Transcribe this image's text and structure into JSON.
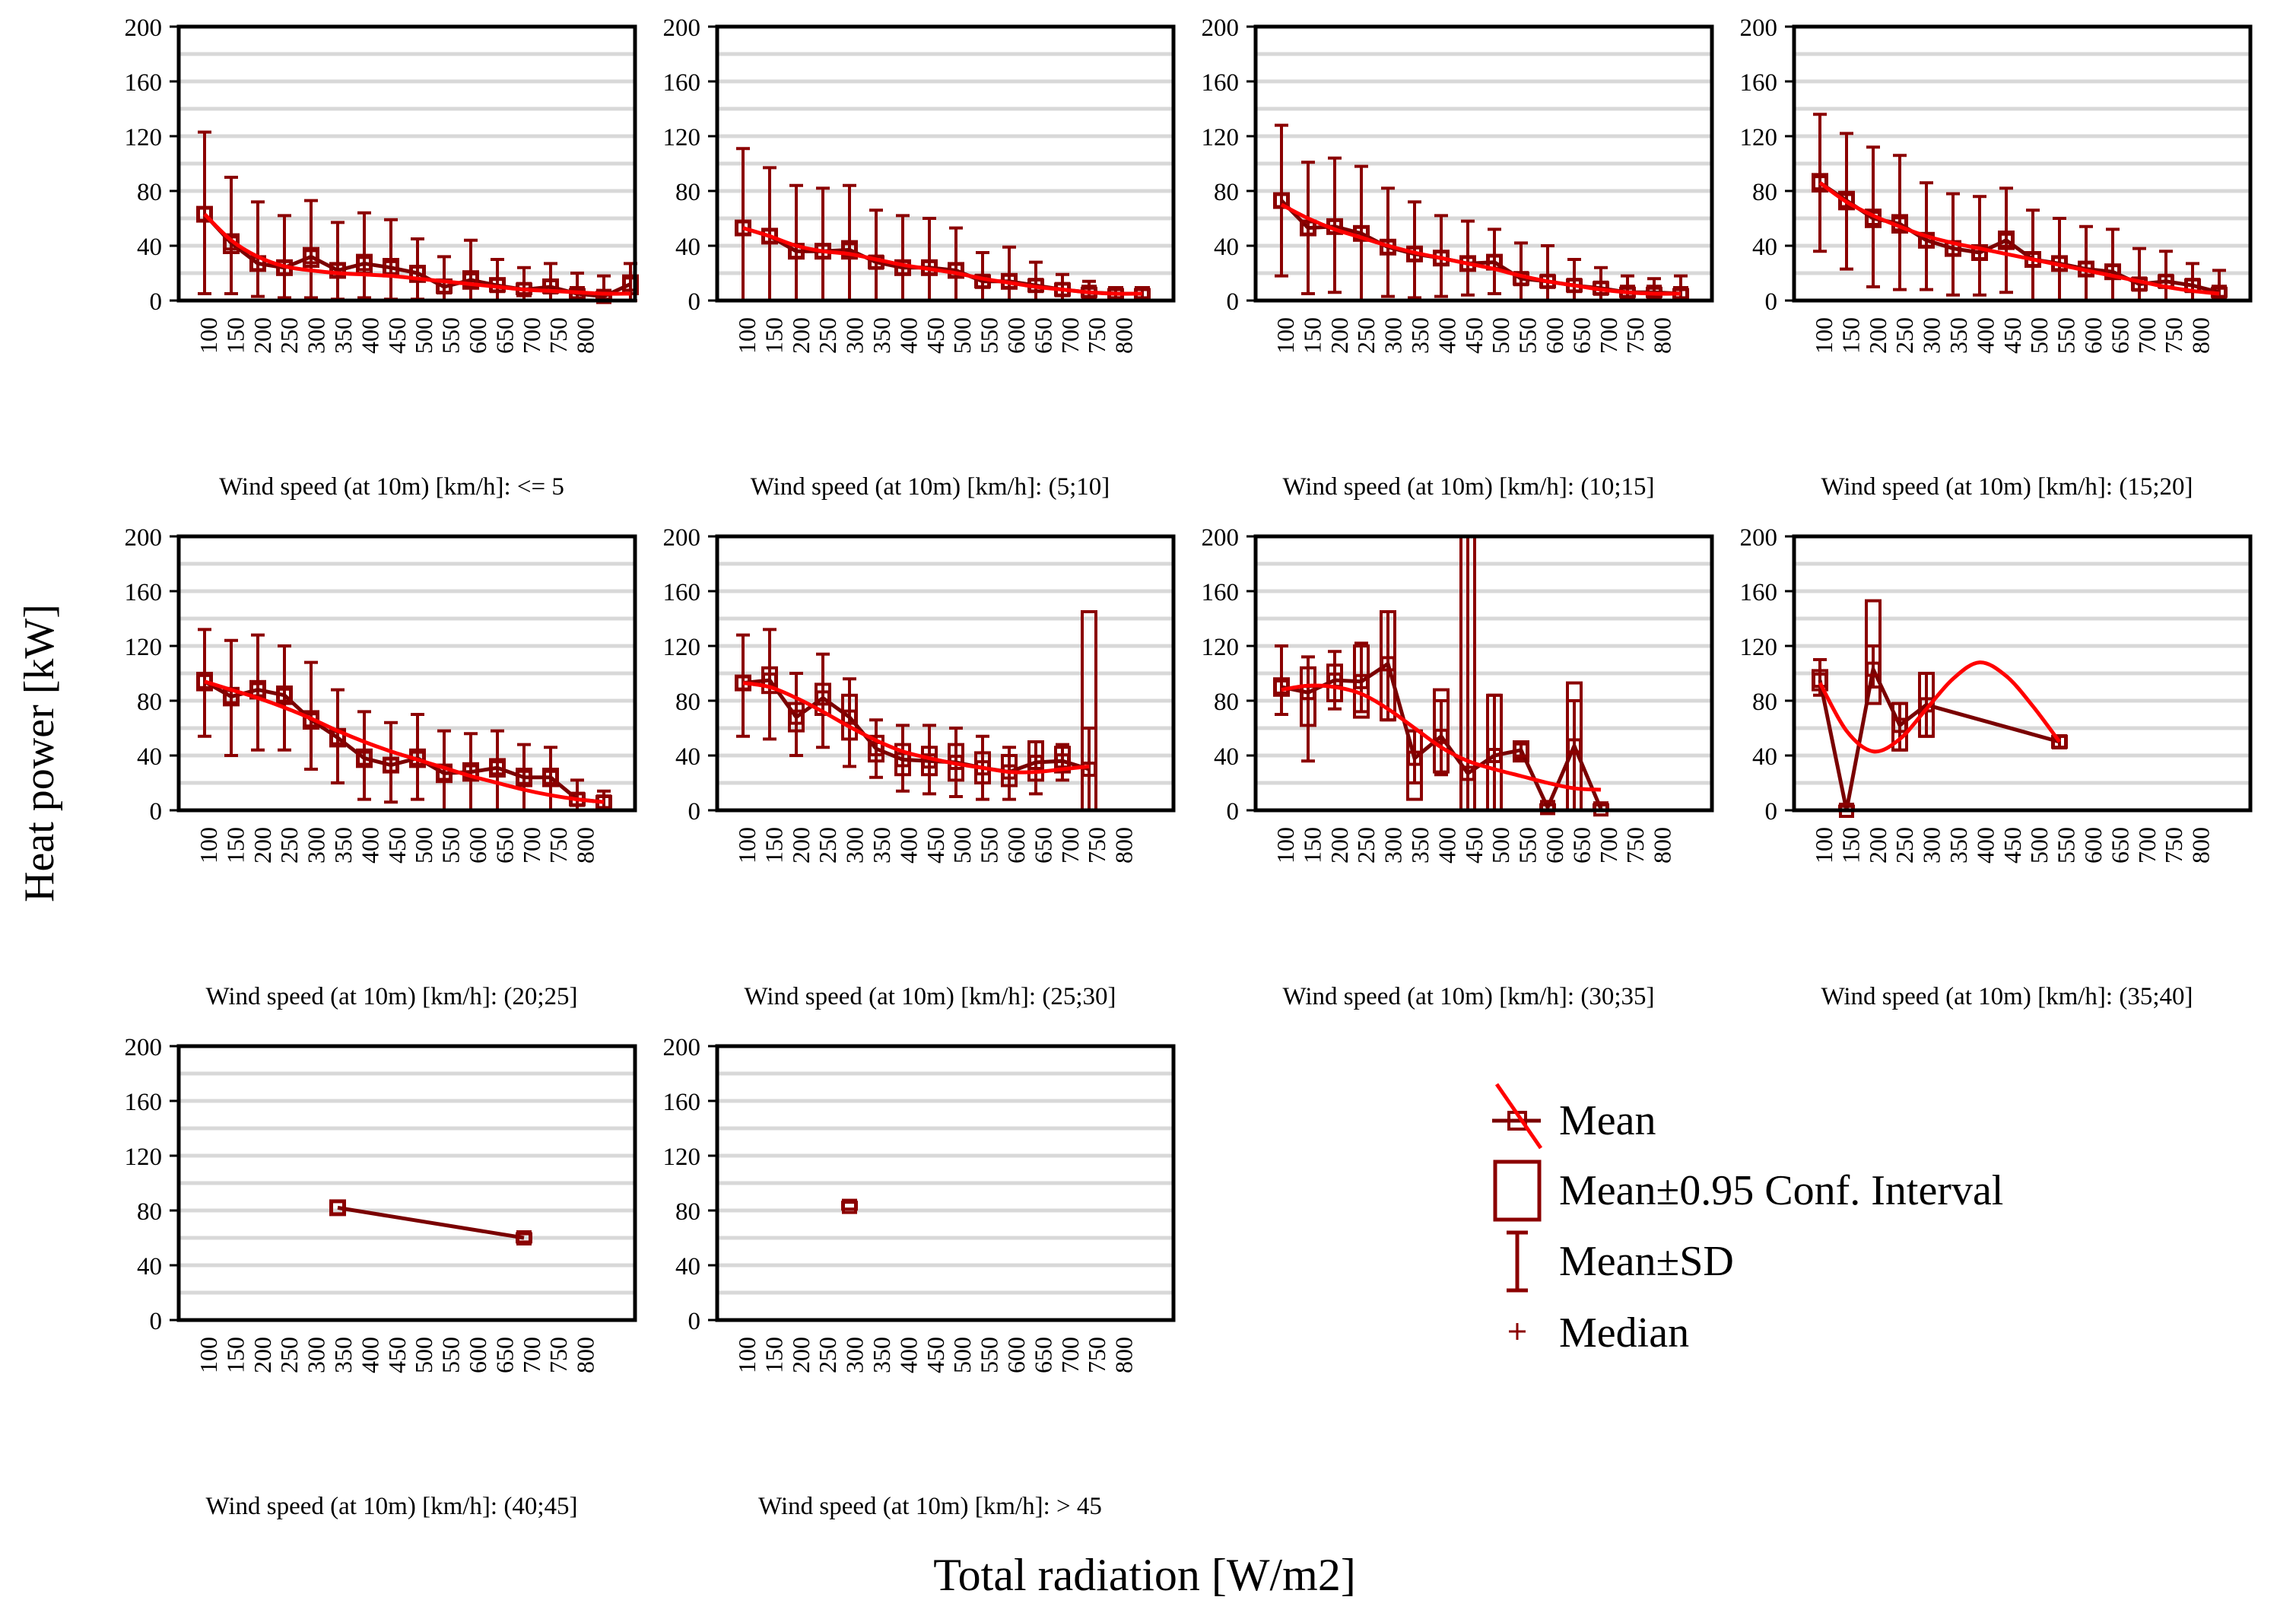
{
  "figure": {
    "ylabel": "Heat power [kW]",
    "xlabel": "Total radiation [W/m2]",
    "legend": [
      {
        "key": "mean",
        "label": "Mean"
      },
      {
        "key": "ci",
        "label": "Mean±0.95 Conf. Interval"
      },
      {
        "key": "sd",
        "label": "Mean±SD"
      },
      {
        "key": "median",
        "label": "Median"
      }
    ]
  },
  "colors": {
    "mean_line": "#7a0000",
    "fit_line": "#ff0000",
    "box": "#8b0000",
    "grid": "#d8d8d8",
    "axis": "#000000"
  },
  "chart_data": [
    {
      "type": "box",
      "title": "Wind speed (at 10m) [km/h]: <= 5",
      "categories": [
        "100",
        "150",
        "200",
        "250",
        "300",
        "350",
        "400",
        "450",
        "500",
        "550",
        "600",
        "650",
        "700",
        "750",
        "800"
      ],
      "ylim": [
        0,
        200
      ],
      "yticks": [
        "0",
        "40",
        "80",
        "120",
        "160",
        "200"
      ],
      "series": [
        {
          "name": "Mean",
          "values": [
            63,
            42,
            27,
            24,
            32,
            22,
            27,
            24,
            20,
            10,
            15,
            11,
            8,
            10,
            5,
            3,
            12
          ]
        }
      ],
      "ci_low": [
        58,
        35,
        22,
        19,
        25,
        17,
        20,
        18,
        14,
        6,
        9,
        7,
        5,
        6,
        2,
        1,
        5
      ],
      "ci_high": [
        68,
        48,
        32,
        29,
        38,
        27,
        33,
        30,
        25,
        15,
        21,
        16,
        12,
        15,
        8,
        6,
        18
      ],
      "sd_low": [
        5,
        5,
        3,
        2,
        2,
        1,
        2,
        1,
        1,
        0,
        0,
        0,
        0,
        0,
        0,
        0,
        0
      ],
      "sd_high": [
        123,
        90,
        72,
        62,
        73,
        57,
        64,
        59,
        45,
        32,
        44,
        30,
        24,
        27,
        20,
        18,
        27
      ],
      "fit": [
        63,
        44,
        32,
        25,
        22,
        20,
        19,
        18,
        16,
        14,
        12,
        10,
        8,
        7,
        6,
        5,
        5
      ],
      "cat_count": 17
    },
    {
      "type": "box",
      "title": "Wind speed (at 10m) [km/h]: (5;10]",
      "categories": [
        "100",
        "150",
        "200",
        "250",
        "300",
        "350",
        "400",
        "450",
        "500",
        "550",
        "600",
        "650",
        "700",
        "750",
        "800"
      ],
      "ylim": [
        0,
        200
      ],
      "yticks": [
        "0",
        "40",
        "80",
        "120",
        "160",
        "200"
      ],
      "series": [
        {
          "name": "Mean",
          "values": [
            53,
            47,
            36,
            36,
            37,
            28,
            24,
            24,
            22,
            14,
            14,
            11,
            8,
            6,
            5,
            5
          ]
        }
      ],
      "ci_low": [
        48,
        42,
        31,
        31,
        31,
        24,
        19,
        19,
        17,
        10,
        9,
        7,
        4,
        3,
        2,
        2
      ],
      "ci_high": [
        58,
        52,
        41,
        41,
        43,
        32,
        29,
        29,
        27,
        18,
        19,
        15,
        12,
        9,
        8,
        8
      ],
      "sd_low": [
        0,
        0,
        0,
        0,
        0,
        0,
        0,
        0,
        0,
        0,
        0,
        0,
        0,
        0,
        0,
        0
      ],
      "sd_high": [
        111,
        97,
        84,
        82,
        84,
        66,
        62,
        60,
        53,
        35,
        39,
        28,
        19,
        14,
        9,
        9
      ],
      "fit": [
        53,
        47,
        40,
        36,
        34,
        30,
        26,
        23,
        20,
        16,
        13,
        10,
        8,
        6,
        5,
        5
      ],
      "cat_count": 16
    },
    {
      "type": "box",
      "title": "Wind speed (at 10m) [km/h]: (10;15]",
      "categories": [
        "100",
        "150",
        "200",
        "250",
        "300",
        "350",
        "400",
        "450",
        "500",
        "550",
        "600",
        "650",
        "700",
        "750",
        "800"
      ],
      "ylim": [
        0,
        200
      ],
      "yticks": [
        "0",
        "40",
        "80",
        "120",
        "160",
        "200"
      ],
      "series": [
        {
          "name": "Mean",
          "values": [
            73,
            53,
            54,
            49,
            39,
            34,
            31,
            27,
            28,
            16,
            14,
            11,
            9,
            6,
            6,
            5
          ]
        }
      ],
      "ci_low": [
        68,
        48,
        49,
        44,
        34,
        29,
        26,
        22,
        23,
        12,
        10,
        7,
        5,
        3,
        3,
        2
      ],
      "ci_high": [
        78,
        58,
        59,
        54,
        44,
        39,
        36,
        32,
        33,
        20,
        18,
        15,
        13,
        9,
        9,
        8
      ],
      "sd_low": [
        18,
        5,
        6,
        0,
        3,
        2,
        3,
        4,
        5,
        0,
        0,
        0,
        0,
        0,
        0,
        0
      ],
      "sd_high": [
        128,
        101,
        104,
        98,
        82,
        72,
        62,
        58,
        52,
        42,
        40,
        30,
        24,
        18,
        16,
        18
      ],
      "fit": [
        70,
        60,
        52,
        46,
        40,
        35,
        31,
        27,
        23,
        18,
        14,
        11,
        8,
        6,
        5,
        5
      ],
      "cat_count": 16
    },
    {
      "type": "box",
      "title": "Wind speed (at 10m) [km/h]: (15;20]",
      "categories": [
        "100",
        "150",
        "200",
        "250",
        "300",
        "350",
        "400",
        "450",
        "500",
        "550",
        "600",
        "650",
        "700",
        "750",
        "800"
      ],
      "ylim": [
        0,
        200
      ],
      "yticks": [
        "0",
        "40",
        "80",
        "120",
        "160",
        "200"
      ],
      "series": [
        {
          "name": "Mean",
          "values": [
            86,
            73,
            60,
            56,
            44,
            38,
            35,
            44,
            30,
            27,
            23,
            21,
            12,
            14,
            11,
            6
          ]
        }
      ],
      "ci_low": [
        80,
        67,
        54,
        50,
        39,
        33,
        30,
        38,
        25,
        22,
        18,
        16,
        8,
        10,
        7,
        3
      ],
      "ci_high": [
        92,
        79,
        66,
        62,
        49,
        43,
        40,
        50,
        35,
        32,
        28,
        26,
        16,
        18,
        15,
        9
      ],
      "sd_low": [
        36,
        23,
        10,
        8,
        8,
        4,
        4,
        6,
        0,
        0,
        0,
        0,
        0,
        0,
        0,
        0
      ],
      "sd_high": [
        136,
        122,
        112,
        106,
        86,
        78,
        76,
        82,
        66,
        60,
        54,
        52,
        38,
        36,
        27,
        22
      ],
      "fit": [
        86,
        72,
        62,
        54,
        47,
        42,
        38,
        34,
        30,
        26,
        22,
        18,
        14,
        10,
        7,
        5
      ],
      "cat_count": 16
    },
    {
      "type": "box",
      "title": "Wind speed (at 10m) [km/h]: (20;25]",
      "categories": [
        "100",
        "150",
        "200",
        "250",
        "300",
        "350",
        "400",
        "450",
        "500",
        "550",
        "600",
        "650",
        "700",
        "750",
        "800"
      ],
      "ylim": [
        0,
        200
      ],
      "yticks": [
        "0",
        "40",
        "80",
        "120",
        "160",
        "200"
      ],
      "series": [
        {
          "name": "Mean",
          "values": [
            94,
            83,
            88,
            84,
            66,
            53,
            38,
            33,
            38,
            27,
            28,
            31,
            24,
            24,
            8,
            6
          ]
        }
      ],
      "ci_low": [
        88,
        77,
        82,
        78,
        60,
        47,
        32,
        28,
        32,
        21,
        22,
        25,
        18,
        18,
        4,
        2
      ],
      "ci_high": [
        100,
        89,
        94,
        90,
        72,
        59,
        44,
        38,
        44,
        33,
        34,
        37,
        30,
        30,
        12,
        10
      ],
      "sd_low": [
        54,
        40,
        44,
        44,
        30,
        20,
        8,
        6,
        8,
        0,
        0,
        0,
        0,
        0,
        0,
        0
      ],
      "sd_high": [
        132,
        124,
        128,
        120,
        108,
        88,
        72,
        64,
        70,
        58,
        56,
        58,
        48,
        46,
        22,
        14
      ],
      "fit": [
        94,
        88,
        82,
        75,
        67,
        58,
        50,
        43,
        37,
        31,
        25,
        20,
        15,
        11,
        8,
        6
      ],
      "cat_count": 16
    },
    {
      "type": "box",
      "title": "Wind speed (at 10m) [km/h]: (25;30]",
      "categories": [
        "100",
        "150",
        "200",
        "250",
        "300",
        "350",
        "400",
        "450",
        "500",
        "550",
        "600",
        "650",
        "700",
        "750",
        "800"
      ],
      "ylim": [
        0,
        200
      ],
      "yticks": [
        "0",
        "40",
        "80",
        "120",
        "160",
        "200"
      ],
      "series": [
        {
          "name": "Mean",
          "values": [
            93,
            95,
            68,
            82,
            68,
            45,
            37,
            36,
            35,
            31,
            28,
            35,
            36,
            30
          ]
        }
      ],
      "ci_low": [
        88,
        86,
        58,
        70,
        52,
        36,
        26,
        26,
        22,
        20,
        18,
        22,
        28,
        0
      ],
      "ci_high": [
        98,
        104,
        78,
        92,
        84,
        54,
        48,
        46,
        48,
        42,
        40,
        50,
        46,
        145
      ],
      "sd_low": [
        54,
        52,
        40,
        46,
        32,
        24,
        14,
        12,
        10,
        8,
        8,
        12,
        22,
        0
      ],
      "sd_high": [
        128,
        132,
        100,
        114,
        96,
        66,
        62,
        62,
        60,
        54,
        46,
        50,
        48,
        60
      ],
      "fit": [
        93,
        90,
        82,
        72,
        61,
        51,
        43,
        38,
        34,
        31,
        28,
        28,
        30,
        32
      ],
      "cat_count": 14
    },
    {
      "type": "box",
      "title": "Wind speed (at 10m) [km/h]: (30;35]",
      "categories": [
        "100",
        "150",
        "200",
        "250",
        "300",
        "350",
        "400",
        "450",
        "500",
        "550",
        "600",
        "650",
        "700",
        "750",
        "800"
      ],
      "ylim": [
        0,
        200
      ],
      "yticks": [
        "0",
        "40",
        "80",
        "120",
        "160",
        "200"
      ],
      "series": [
        {
          "name": "Mean",
          "values": [
            90,
            86,
            95,
            94,
            107,
            38,
            54,
            27,
            40,
            44,
            2,
            47,
            1
          ]
        }
      ],
      "ci_low": [
        84,
        62,
        80,
        68,
        66,
        8,
        28,
        0,
        0,
        36,
        0,
        0,
        0
      ],
      "ci_high": [
        96,
        104,
        106,
        120,
        145,
        58,
        88,
        200,
        84,
        50,
        4,
        93,
        4
      ],
      "sd_low": [
        70,
        36,
        74,
        72,
        66,
        20,
        26,
        0,
        0,
        38,
        0,
        0,
        0
      ],
      "sd_high": [
        120,
        112,
        116,
        122,
        145,
        58,
        80,
        200,
        84,
        50,
        4,
        80,
        4
      ],
      "fit": [
        88,
        91,
        90,
        85,
        74,
        60,
        46,
        36,
        30,
        25,
        20,
        16,
        15
      ],
      "cat_count": 13
    },
    {
      "type": "box",
      "title": "Wind speed (at 10m) [km/h]: (35;40]",
      "categories": [
        "100",
        "150",
        "200",
        "250",
        "300",
        "350",
        "400",
        "450",
        "500",
        "550",
        "600",
        "650",
        "700",
        "750",
        "800"
      ],
      "ylim": [
        0,
        200
      ],
      "yticks": [
        "0",
        "40",
        "80",
        "120",
        "160",
        "200"
      ],
      "series": [
        {
          "name": "Mean",
          "values": [
            95,
            0,
            103,
            62,
            77,
            null,
            null,
            null,
            null,
            50
          ]
        }
      ],
      "ci_low": [
        88,
        0,
        78,
        44,
        54,
        null,
        null,
        null,
        null,
        46
      ],
      "ci_high": [
        102,
        3,
        153,
        78,
        100,
        null,
        null,
        null,
        null,
        54
      ],
      "sd_low": [
        84,
        0,
        90,
        44,
        54,
        null,
        null,
        null,
        null,
        46
      ],
      "sd_high": [
        110,
        3,
        120,
        78,
        100,
        null,
        null,
        null,
        null,
        54
      ],
      "fit": [
        93,
        58,
        43,
        52,
        74,
        96,
        108,
        98,
        76,
        50
      ],
      "cat_count": 10
    },
    {
      "type": "box",
      "title": "Wind speed (at 10m) [km/h]: (40;45]",
      "categories": [
        "100",
        "150",
        "200",
        "250",
        "300",
        "350",
        "400",
        "450",
        "500",
        "550",
        "600",
        "650",
        "700",
        "750",
        "800"
      ],
      "ylim": [
        0,
        200
      ],
      "yticks": [
        "0",
        "40",
        "80",
        "120",
        "160",
        "200"
      ],
      "series": [
        {
          "name": "Mean",
          "values": [
            null,
            null,
            null,
            null,
            null,
            82,
            null,
            null,
            null,
            null,
            null,
            null,
            60
          ]
        }
      ],
      "ci_low": [
        null,
        null,
        null,
        null,
        null,
        77,
        null,
        null,
        null,
        null,
        null,
        null,
        57
      ],
      "ci_high": [
        null,
        null,
        null,
        null,
        null,
        87,
        null,
        null,
        null,
        null,
        null,
        null,
        63
      ],
      "sd_low": [
        null,
        null,
        null,
        null,
        null,
        null,
        null,
        null,
        null,
        null,
        null,
        null,
        null
      ],
      "sd_high": [
        null,
        null,
        null,
        null,
        null,
        null,
        null,
        null,
        null,
        null,
        null,
        null,
        null
      ],
      "fit": [],
      "cat_count": 17
    },
    {
      "type": "box",
      "title": "Wind speed (at 10m) [km/h]: > 45",
      "categories": [
        "100",
        "150",
        "200",
        "250",
        "300",
        "350",
        "400",
        "450",
        "500",
        "550",
        "600",
        "650",
        "700",
        "750",
        "800"
      ],
      "ylim": [
        0,
        200
      ],
      "yticks": [
        "0",
        "40",
        "80",
        "120",
        "160",
        "200"
      ],
      "series": [
        {
          "name": "Mean",
          "values": [
            null,
            null,
            null,
            null,
            83
          ]
        }
      ],
      "ci_low": [
        null,
        null,
        null,
        null,
        81
      ],
      "ci_high": [
        null,
        null,
        null,
        null,
        86
      ],
      "sd_low": [
        null,
        null,
        null,
        null,
        null
      ],
      "sd_high": [
        null,
        null,
        null,
        null,
        null
      ],
      "fit": [],
      "cat_count": 16
    }
  ]
}
